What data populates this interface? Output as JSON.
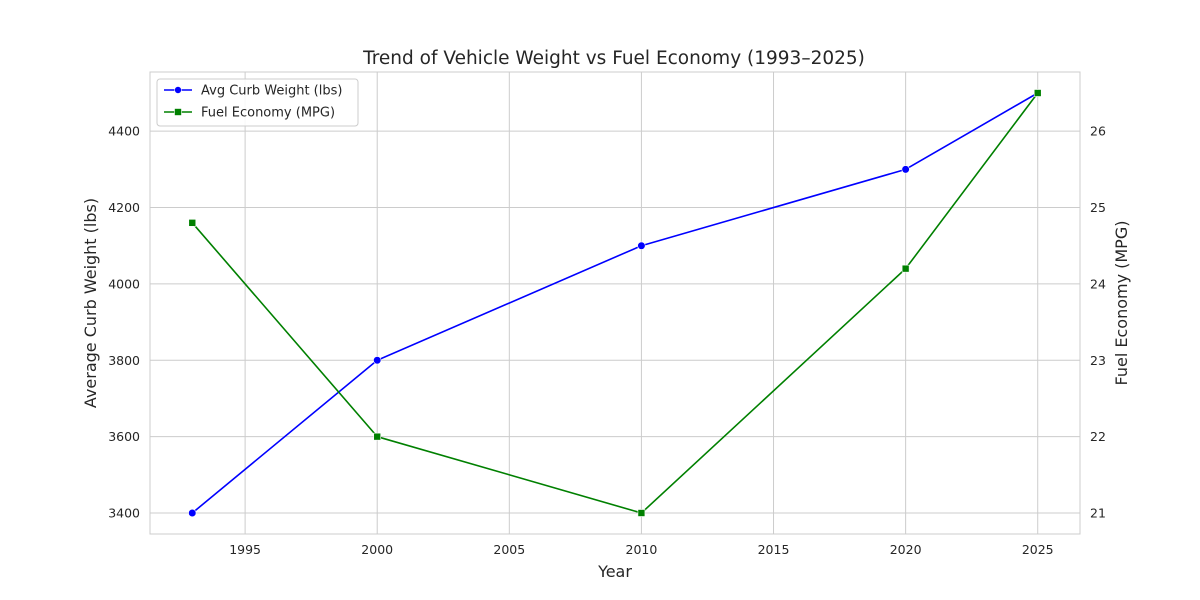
{
  "chart_data": {
    "type": "line",
    "title": "Trend of Vehicle Weight vs Fuel Economy (1993–2025)",
    "xlabel": "Year",
    "ylabel_left": "Average Curb Weight (lbs)",
    "ylabel_right": "Fuel Economy (MPG)",
    "x": [
      1993,
      2000,
      2010,
      2020,
      2025
    ],
    "xlim": [
      1991.4,
      2026.6
    ],
    "x_ticks": [
      1995,
      2000,
      2005,
      2010,
      2015,
      2020,
      2025
    ],
    "ylim_left": [
      3345,
      4555
    ],
    "y_ticks_left": [
      3400,
      3600,
      3800,
      4000,
      4200,
      4400
    ],
    "ylim_right": [
      20.725,
      26.775
    ],
    "y_ticks_right": [
      21,
      22,
      23,
      24,
      25,
      26
    ],
    "grid": true,
    "legend_position": "top-left",
    "series": [
      {
        "name": "Avg Curb Weight (lbs)",
        "axis": "left",
        "color": "#0000ff",
        "marker": "circle",
        "values": [
          3400,
          3800,
          4100,
          4300,
          4500
        ]
      },
      {
        "name": "Fuel Economy (MPG)",
        "axis": "right",
        "color": "#008000",
        "marker": "square",
        "values": [
          24.8,
          22.0,
          21.0,
          24.2,
          26.5
        ]
      }
    ]
  }
}
